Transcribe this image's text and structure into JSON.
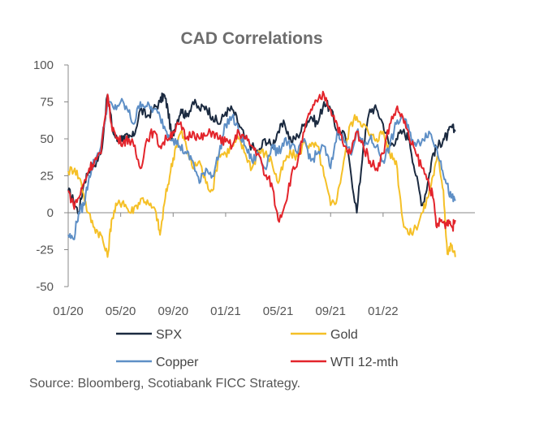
{
  "chart_data": {
    "type": "line",
    "title": "CAD Correlations",
    "xlabel": "",
    "ylabel": "",
    "ylim": [
      -50,
      100
    ],
    "yticks": [
      -50,
      -25,
      0,
      25,
      50,
      75,
      100
    ],
    "ytick_labels": [
      "-50",
      "-25",
      "0",
      "25",
      "50",
      "75",
      "100"
    ],
    "xlim": [
      0,
      31
    ],
    "xticks": [
      0,
      4,
      8,
      12,
      16,
      20,
      24
    ],
    "xtick_labels": [
      "01/20",
      "05/20",
      "09/20",
      "01/21",
      "05/21",
      "09/21",
      "01/22"
    ],
    "x_unit": "months since 01/2020",
    "grid": false,
    "legend_position": "bottom",
    "series": [
      {
        "name": "SPX",
        "color": "#1b2a40",
        "x": [
          0,
          0.4,
          0.8,
          1.2,
          1.6,
          2.0,
          2.5,
          3.0,
          3.4,
          3.8,
          4.2,
          4.6,
          5.0,
          5.5,
          6.0,
          6.5,
          7.0,
          7.3,
          7.6,
          7.9,
          8.2,
          8.6,
          9.0,
          9.5,
          10.0,
          10.5,
          11.0,
          11.5,
          12.0,
          12.5,
          13.0,
          13.5,
          14.0,
          14.5,
          15.0,
          15.5,
          16.0,
          16.5,
          17.0,
          17.5,
          18.0,
          18.5,
          19.0,
          19.5,
          20.0,
          20.5,
          21.0,
          21.5,
          22.0,
          22.5,
          23.0,
          23.5,
          24.0,
          24.5,
          25.0,
          25.5,
          26.0,
          26.5,
          27.0,
          27.4,
          27.8,
          28.2,
          28.6,
          28.9,
          29.2,
          29.5
        ],
        "values": [
          15,
          8,
          0,
          20,
          30,
          32,
          40,
          80,
          55,
          48,
          52,
          50,
          52,
          70,
          65,
          70,
          75,
          80,
          70,
          50,
          60,
          70,
          65,
          75,
          70,
          72,
          65,
          60,
          68,
          70,
          60,
          50,
          45,
          40,
          50,
          45,
          55,
          60,
          48,
          52,
          60,
          65,
          60,
          75,
          70,
          55,
          55,
          30,
          0,
          45,
          70,
          70,
          60,
          45,
          50,
          55,
          50,
          25,
          5,
          20,
          40,
          45,
          50,
          52,
          58,
          55
        ]
      },
      {
        "name": "Gold",
        "color": "#f5c027",
        "x": [
          0,
          0.5,
          1.0,
          1.5,
          2.0,
          2.5,
          3.0,
          3.3,
          3.7,
          4.2,
          4.7,
          5.2,
          5.7,
          6.2,
          6.7,
          7.0,
          7.4,
          7.8,
          8.2,
          8.6,
          9.0,
          9.5,
          10.0,
          10.5,
          11.0,
          11.5,
          12.0,
          12.5,
          13.0,
          13.5,
          14.0,
          14.5,
          15.0,
          15.5,
          16.0,
          16.5,
          17.0,
          17.5,
          18.0,
          18.5,
          19.0,
          19.5,
          20.0,
          20.5,
          21.0,
          21.5,
          22.0,
          22.5,
          23.0,
          23.5,
          24.0,
          24.5,
          25.0,
          25.5,
          26.0,
          26.5,
          27.0,
          27.4,
          27.8,
          28.2,
          28.6,
          28.9,
          29.2,
          29.5
        ],
        "values": [
          28,
          30,
          20,
          0,
          -10,
          -15,
          -30,
          -5,
          5,
          8,
          0,
          5,
          10,
          5,
          0,
          -15,
          10,
          28,
          45,
          55,
          45,
          30,
          35,
          20,
          15,
          40,
          40,
          45,
          50,
          40,
          30,
          42,
          40,
          35,
          20,
          35,
          40,
          38,
          48,
          45,
          45,
          25,
          5,
          10,
          35,
          60,
          65,
          60,
          52,
          50,
          55,
          40,
          35,
          -5,
          -15,
          -10,
          0,
          10,
          25,
          38,
          15,
          -28,
          -22,
          -30
        ]
      },
      {
        "name": "Copper",
        "color": "#5e8fc6",
        "x": [
          0,
          0.4,
          0.8,
          1.2,
          1.6,
          2.0,
          2.5,
          3.0,
          3.5,
          4.0,
          4.5,
          5.0,
          5.5,
          6.0,
          6.5,
          7.0,
          7.5,
          8.0,
          8.5,
          9.0,
          9.5,
          10.0,
          10.5,
          11.0,
          11.5,
          12.0,
          12.5,
          13.0,
          13.5,
          14.0,
          14.5,
          15.0,
          15.5,
          16.0,
          16.5,
          17.0,
          17.5,
          18.0,
          18.5,
          19.0,
          19.5,
          20.0,
          20.5,
          21.0,
          21.5,
          22.0,
          22.5,
          23.0,
          23.5,
          24.0,
          24.5,
          25.0,
          25.5,
          26.0,
          26.5,
          27.0,
          27.5,
          28.0,
          28.4,
          28.8,
          29.2,
          29.5
        ],
        "values": [
          -15,
          -18,
          0,
          5,
          25,
          35,
          45,
          75,
          70,
          75,
          70,
          60,
          75,
          72,
          70,
          65,
          55,
          50,
          45,
          40,
          35,
          20,
          30,
          25,
          40,
          60,
          65,
          55,
          45,
          35,
          40,
          30,
          45,
          40,
          50,
          45,
          40,
          50,
          35,
          40,
          45,
          30,
          55,
          50,
          40,
          55,
          45,
          50,
          45,
          35,
          45,
          60,
          65,
          55,
          45,
          50,
          55,
          45,
          35,
          20,
          10,
          8
        ]
      },
      {
        "name": "WTI 12-mth",
        "color": "#e3242b",
        "x": [
          0,
          0.4,
          0.8,
          1.2,
          1.6,
          2.0,
          2.5,
          3.0,
          3.3,
          3.7,
          4.2,
          4.6,
          5.0,
          5.5,
          6.0,
          6.5,
          7.0,
          7.5,
          8.0,
          8.5,
          9.0,
          9.5,
          10.0,
          10.5,
          11.0,
          11.5,
          12.0,
          12.5,
          13.0,
          13.5,
          14.0,
          14.5,
          15.0,
          15.5,
          16.0,
          16.5,
          17.0,
          17.5,
          18.0,
          18.5,
          19.0,
          19.5,
          20.0,
          20.5,
          21.0,
          21.5,
          22.0,
          22.5,
          23.0,
          23.5,
          24.0,
          24.5,
          25.0,
          25.5,
          26.0,
          26.5,
          27.0,
          27.5,
          27.8,
          28.1,
          28.4,
          28.7,
          29.0,
          29.3,
          29.5
        ],
        "values": [
          15,
          5,
          10,
          20,
          30,
          35,
          40,
          80,
          60,
          50,
          48,
          50,
          45,
          30,
          50,
          55,
          45,
          50,
          55,
          60,
          50,
          55,
          50,
          52,
          55,
          50,
          48,
          45,
          55,
          50,
          45,
          40,
          25,
          20,
          -5,
          5,
          25,
          35,
          55,
          70,
          75,
          80,
          70,
          60,
          45,
          40,
          55,
          45,
          35,
          30,
          40,
          60,
          70,
          65,
          50,
          40,
          30,
          20,
          10,
          -10,
          -5,
          -8,
          -5,
          -10,
          -5
        ]
      }
    ],
    "source": "Source: Bloomberg, Scotiabank FICC Strategy."
  }
}
